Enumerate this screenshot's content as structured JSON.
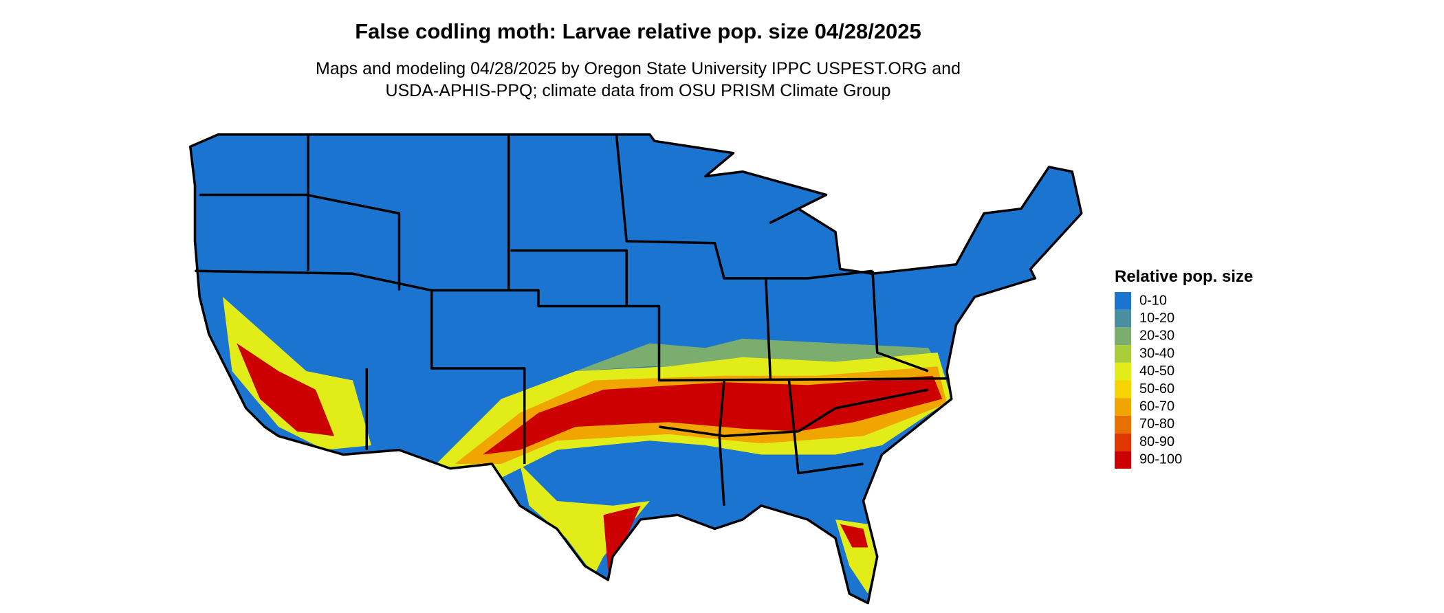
{
  "header": {
    "title": "False codling moth: Larvae relative pop. size 04/28/2025",
    "subtitle_lines": [
      "Maps and modeling 04/28/2025 by Oregon State University IPPC USPEST.ORG and",
      "USDA-APHIS-PPQ; climate data from OSU PRISM Climate Group"
    ]
  },
  "legend": {
    "title": "Relative pop. size",
    "items": [
      {
        "label": "0-10",
        "color": "#1a74d0"
      },
      {
        "label": "10-20",
        "color": "#4a8fa0"
      },
      {
        "label": "20-30",
        "color": "#7aad6e"
      },
      {
        "label": "30-40",
        "color": "#a8cc3a"
      },
      {
        "label": "40-50",
        "color": "#e2ec18"
      },
      {
        "label": "50-60",
        "color": "#f7d400"
      },
      {
        "label": "60-70",
        "color": "#f0a500"
      },
      {
        "label": "70-80",
        "color": "#e87000"
      },
      {
        "label": "80-90",
        "color": "#e03800"
      },
      {
        "label": "90-100",
        "color": "#cc0000"
      }
    ]
  }
}
